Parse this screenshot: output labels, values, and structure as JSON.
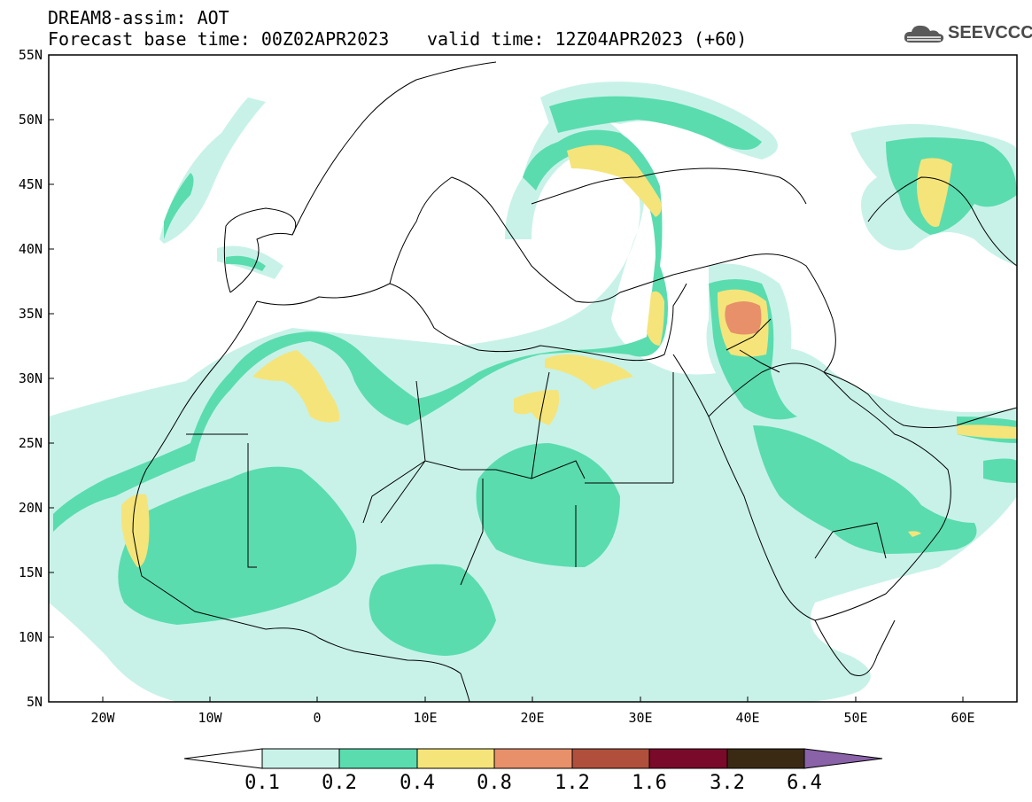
{
  "header": {
    "line1": "DREAM8-assim: AOT",
    "line2": "Forecast base time: 00Z02APR2023",
    "valid": "valid time: 12Z04APR2023 (+60)"
  },
  "logo": {
    "text": "SEEVCCC",
    "icon": "cloud-icon"
  },
  "map": {
    "lat_labels": [
      "55N",
      "50N",
      "45N",
      "40N",
      "35N",
      "30N",
      "25N",
      "20N",
      "15N",
      "10N",
      "5N"
    ],
    "lon_labels": [
      "20W",
      "10W",
      "0",
      "10E",
      "20E",
      "30E",
      "40E",
      "50E",
      "60E"
    ],
    "lat_range": [
      5,
      55
    ],
    "lon_range": [
      -25,
      65
    ],
    "variable": "AOT"
  },
  "colorbar": {
    "labels": [
      "0.1",
      "0.2",
      "0.4",
      "0.8",
      "1.2",
      "1.6",
      "3.2",
      "6.4"
    ],
    "colors": [
      "#ffffff",
      "#c8f2e8",
      "#5adcaf",
      "#f5e47a",
      "#e8906a",
      "#b0503c",
      "#7a0a2a",
      "#3a2a14",
      "#8a62a8"
    ]
  }
}
